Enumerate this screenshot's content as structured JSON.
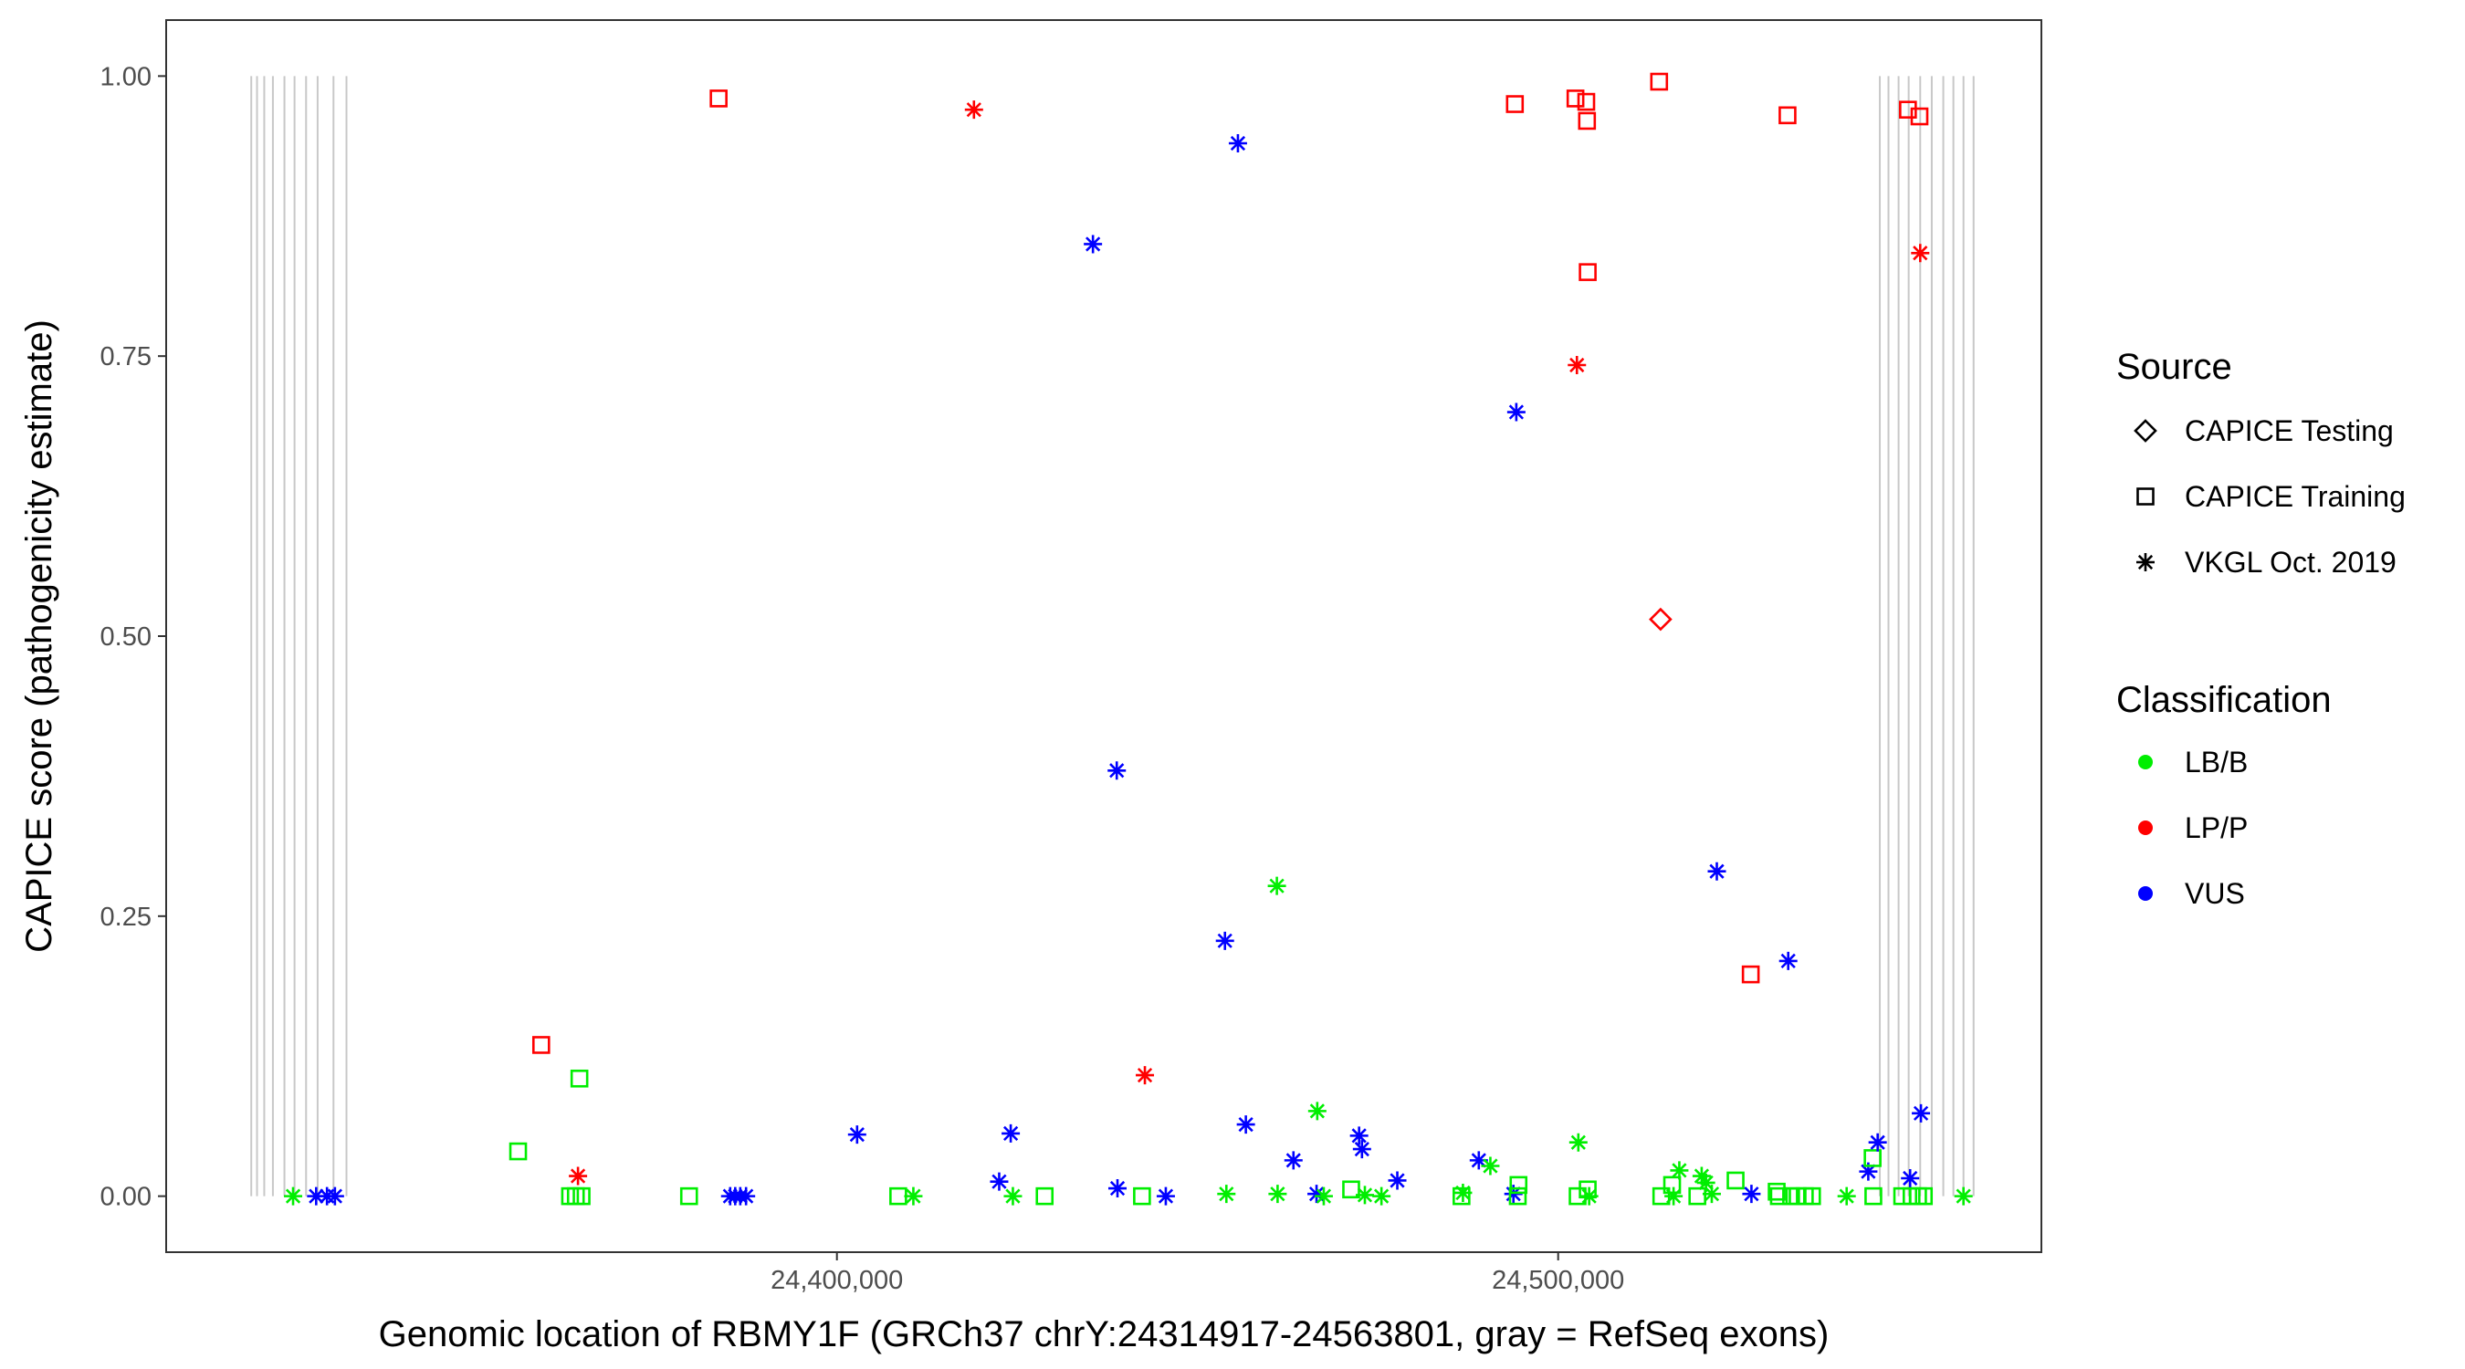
{
  "chart_data": {
    "type": "scatter",
    "title": "",
    "xlabel": "Genomic location of RBMY1F (GRCh37 chrY:24314917-24563801, gray = RefSeq exons)",
    "ylabel": "CAPICE score (pathogenicity estimate)",
    "xlim": [
      24307000,
      24567000
    ],
    "ylim": [
      -0.05,
      1.05
    ],
    "x_ticks": [
      24400000,
      24500000
    ],
    "x_tick_labels": [
      "24,400,000",
      "24,500,000"
    ],
    "y_ticks": [
      0,
      0.25,
      0.5,
      0.75,
      1.0
    ],
    "y_tick_labels": [
      "0.00",
      "0.25",
      "0.50",
      "0.75",
      "1.00"
    ],
    "grid": false,
    "exons": [
      24318800,
      24319600,
      24320600,
      24321800,
      24323400,
      24324800,
      24326400,
      24328000,
      24330200,
      24332000,
      24544600,
      24545800,
      24547200,
      24548600,
      24550200,
      24551800,
      24553400,
      24554800,
      24556200,
      24557600
    ],
    "legend_source": {
      "title": "Source",
      "items": [
        {
          "label": "CAPICE Testing",
          "shape": "diamond"
        },
        {
          "label": "CAPICE Training",
          "shape": "square"
        },
        {
          "label": "VKGL Oct. 2019",
          "shape": "asterisk"
        }
      ]
    },
    "legend_classification": {
      "title": "Classification",
      "items": [
        {
          "label": "LB/B",
          "color": "#00ee00"
        },
        {
          "label": "LP/P",
          "color": "#ff0000"
        },
        {
          "label": "VUS",
          "color": "#0000ff"
        }
      ]
    },
    "legend_placement": "right",
    "colors": {
      "LB/B": "#00ee00",
      "LP/P": "#ff0000",
      "VUS": "#0000ff"
    },
    "points": [
      {
        "x": 24324600,
        "y": 0.0,
        "shape": "asterisk",
        "cls": "LB/B"
      },
      {
        "x": 24327800,
        "y": 0.0,
        "shape": "asterisk",
        "cls": "VUS"
      },
      {
        "x": 24329300,
        "y": 0.0,
        "shape": "asterisk",
        "cls": "VUS"
      },
      {
        "x": 24330400,
        "y": 0.0,
        "shape": "asterisk",
        "cls": "VUS"
      },
      {
        "x": 24355800,
        "y": 0.04,
        "shape": "square",
        "cls": "LB/B"
      },
      {
        "x": 24359000,
        "y": 0.135,
        "shape": "square",
        "cls": "LP/P"
      },
      {
        "x": 24363000,
        "y": 0.0,
        "shape": "square",
        "cls": "LB/B"
      },
      {
        "x": 24363800,
        "y": 0.0,
        "shape": "square",
        "cls": "LB/B"
      },
      {
        "x": 24364100,
        "y": 0.018,
        "shape": "asterisk",
        "cls": "LP/P"
      },
      {
        "x": 24364300,
        "y": 0.105,
        "shape": "square",
        "cls": "LB/B"
      },
      {
        "x": 24364600,
        "y": 0.0,
        "shape": "square",
        "cls": "LB/B"
      },
      {
        "x": 24379500,
        "y": 0.0,
        "shape": "square",
        "cls": "LB/B"
      },
      {
        "x": 24383600,
        "y": 0.98,
        "shape": "square",
        "cls": "LP/P"
      },
      {
        "x": 24385200,
        "y": 0.0,
        "shape": "asterisk",
        "cls": "VUS"
      },
      {
        "x": 24385900,
        "y": 0.0,
        "shape": "asterisk",
        "cls": "VUS"
      },
      {
        "x": 24386600,
        "y": 0.0,
        "shape": "asterisk",
        "cls": "VUS"
      },
      {
        "x": 24387400,
        "y": 0.0,
        "shape": "asterisk",
        "cls": "VUS"
      },
      {
        "x": 24402800,
        "y": 0.055,
        "shape": "asterisk",
        "cls": "VUS"
      },
      {
        "x": 24408500,
        "y": 0.0,
        "shape": "square",
        "cls": "LB/B"
      },
      {
        "x": 24410600,
        "y": 0.0,
        "shape": "asterisk",
        "cls": "LB/B"
      },
      {
        "x": 24419000,
        "y": 0.97,
        "shape": "asterisk",
        "cls": "LP/P"
      },
      {
        "x": 24422500,
        "y": 0.013,
        "shape": "asterisk",
        "cls": "VUS"
      },
      {
        "x": 24424100,
        "y": 0.056,
        "shape": "asterisk",
        "cls": "VUS"
      },
      {
        "x": 24424400,
        "y": 0.0,
        "shape": "asterisk",
        "cls": "LB/B"
      },
      {
        "x": 24428800,
        "y": 0.0,
        "shape": "square",
        "cls": "LB/B"
      },
      {
        "x": 24435500,
        "y": 0.85,
        "shape": "asterisk",
        "cls": "VUS"
      },
      {
        "x": 24438800,
        "y": 0.38,
        "shape": "asterisk",
        "cls": "VUS"
      },
      {
        "x": 24438900,
        "y": 0.007,
        "shape": "asterisk",
        "cls": "VUS"
      },
      {
        "x": 24442300,
        "y": 0.0,
        "shape": "square",
        "cls": "LB/B"
      },
      {
        "x": 24442700,
        "y": 0.108,
        "shape": "asterisk",
        "cls": "LP/P"
      },
      {
        "x": 24445600,
        "y": 0.0,
        "shape": "asterisk",
        "cls": "VUS"
      },
      {
        "x": 24453800,
        "y": 0.228,
        "shape": "asterisk",
        "cls": "VUS"
      },
      {
        "x": 24454000,
        "y": 0.002,
        "shape": "asterisk",
        "cls": "LB/B"
      },
      {
        "x": 24455600,
        "y": 0.94,
        "shape": "asterisk",
        "cls": "VUS"
      },
      {
        "x": 24456700,
        "y": 0.064,
        "shape": "asterisk",
        "cls": "VUS"
      },
      {
        "x": 24461000,
        "y": 0.277,
        "shape": "asterisk",
        "cls": "LB/B"
      },
      {
        "x": 24461100,
        "y": 0.002,
        "shape": "asterisk",
        "cls": "LB/B"
      },
      {
        "x": 24463300,
        "y": 0.032,
        "shape": "asterisk",
        "cls": "VUS"
      },
      {
        "x": 24466600,
        "y": 0.076,
        "shape": "asterisk",
        "cls": "LB/B"
      },
      {
        "x": 24466500,
        "y": 0.002,
        "shape": "asterisk",
        "cls": "VUS"
      },
      {
        "x": 24467500,
        "y": 0.0,
        "shape": "asterisk",
        "cls": "LB/B"
      },
      {
        "x": 24471300,
        "y": 0.006,
        "shape": "square",
        "cls": "LB/B"
      },
      {
        "x": 24472400,
        "y": 0.054,
        "shape": "asterisk",
        "cls": "VUS"
      },
      {
        "x": 24472800,
        "y": 0.042,
        "shape": "asterisk",
        "cls": "VUS"
      },
      {
        "x": 24473200,
        "y": 0.001,
        "shape": "asterisk",
        "cls": "LB/B"
      },
      {
        "x": 24475500,
        "y": 0.0,
        "shape": "asterisk",
        "cls": "LB/B"
      },
      {
        "x": 24477700,
        "y": 0.014,
        "shape": "asterisk",
        "cls": "VUS"
      },
      {
        "x": 24486600,
        "y": 0.0,
        "shape": "square",
        "cls": "LB/B"
      },
      {
        "x": 24486800,
        "y": 0.003,
        "shape": "asterisk",
        "cls": "LB/B"
      },
      {
        "x": 24489000,
        "y": 0.032,
        "shape": "asterisk",
        "cls": "VUS"
      },
      {
        "x": 24490600,
        "y": 0.027,
        "shape": "asterisk",
        "cls": "LB/B"
      },
      {
        "x": 24493800,
        "y": 0.002,
        "shape": "asterisk",
        "cls": "VUS"
      },
      {
        "x": 24494000,
        "y": 0.975,
        "shape": "square",
        "cls": "LP/P"
      },
      {
        "x": 24494200,
        "y": 0.7,
        "shape": "asterisk",
        "cls": "VUS"
      },
      {
        "x": 24494400,
        "y": 0.0,
        "shape": "square",
        "cls": "LB/B"
      },
      {
        "x": 24494500,
        "y": 0.01,
        "shape": "square",
        "cls": "LB/B"
      },
      {
        "x": 24502400,
        "y": 0.98,
        "shape": "square",
        "cls": "LP/P"
      },
      {
        "x": 24502600,
        "y": 0.742,
        "shape": "asterisk",
        "cls": "LP/P"
      },
      {
        "x": 24502800,
        "y": 0.048,
        "shape": "asterisk",
        "cls": "LB/B"
      },
      {
        "x": 24502700,
        "y": 0.0,
        "shape": "square",
        "cls": "LB/B"
      },
      {
        "x": 24503900,
        "y": 0.977,
        "shape": "square",
        "cls": "LP/P"
      },
      {
        "x": 24504000,
        "y": 0.96,
        "shape": "square",
        "cls": "LP/P"
      },
      {
        "x": 24504100,
        "y": 0.825,
        "shape": "square",
        "cls": "LP/P"
      },
      {
        "x": 24504100,
        "y": 0.006,
        "shape": "square",
        "cls": "LB/B"
      },
      {
        "x": 24504300,
        "y": 0.0,
        "shape": "asterisk",
        "cls": "LB/B"
      },
      {
        "x": 24514000,
        "y": 0.995,
        "shape": "square",
        "cls": "LP/P"
      },
      {
        "x": 24514200,
        "y": 0.515,
        "shape": "diamond",
        "cls": "LP/P"
      },
      {
        "x": 24514300,
        "y": 0.0,
        "shape": "square",
        "cls": "LB/B"
      },
      {
        "x": 24515800,
        "y": 0.01,
        "shape": "square",
        "cls": "LB/B"
      },
      {
        "x": 24516000,
        "y": 0.0,
        "shape": "asterisk",
        "cls": "LB/B"
      },
      {
        "x": 24516800,
        "y": 0.023,
        "shape": "asterisk",
        "cls": "LB/B"
      },
      {
        "x": 24519300,
        "y": 0.0,
        "shape": "square",
        "cls": "LB/B"
      },
      {
        "x": 24519900,
        "y": 0.018,
        "shape": "asterisk",
        "cls": "LB/B"
      },
      {
        "x": 24520500,
        "y": 0.012,
        "shape": "asterisk",
        "cls": "LB/B"
      },
      {
        "x": 24521300,
        "y": 0.002,
        "shape": "asterisk",
        "cls": "LB/B"
      },
      {
        "x": 24522000,
        "y": 0.29,
        "shape": "asterisk",
        "cls": "VUS"
      },
      {
        "x": 24524600,
        "y": 0.014,
        "shape": "square",
        "cls": "LB/B"
      },
      {
        "x": 24526700,
        "y": 0.198,
        "shape": "square",
        "cls": "LP/P"
      },
      {
        "x": 24526800,
        "y": 0.002,
        "shape": "asterisk",
        "cls": "VUS"
      },
      {
        "x": 24530300,
        "y": 0.004,
        "shape": "square",
        "cls": "LB/B"
      },
      {
        "x": 24530600,
        "y": 0.0,
        "shape": "square",
        "cls": "LB/B"
      },
      {
        "x": 24531800,
        "y": 0.965,
        "shape": "square",
        "cls": "LP/P"
      },
      {
        "x": 24531900,
        "y": 0.21,
        "shape": "asterisk",
        "cls": "VUS"
      },
      {
        "x": 24532300,
        "y": 0.0,
        "shape": "square",
        "cls": "LB/B"
      },
      {
        "x": 24533200,
        "y": 0.0,
        "shape": "square",
        "cls": "LB/B"
      },
      {
        "x": 24534200,
        "y": 0.0,
        "shape": "square",
        "cls": "LB/B"
      },
      {
        "x": 24535200,
        "y": 0.0,
        "shape": "square",
        "cls": "LB/B"
      },
      {
        "x": 24540000,
        "y": 0.0,
        "shape": "asterisk",
        "cls": "LB/B"
      },
      {
        "x": 24543000,
        "y": 0.022,
        "shape": "asterisk",
        "cls": "VUS"
      },
      {
        "x": 24543600,
        "y": 0.034,
        "shape": "square",
        "cls": "LB/B"
      },
      {
        "x": 24543700,
        "y": 0.0,
        "shape": "square",
        "cls": "LB/B"
      },
      {
        "x": 24544300,
        "y": 0.048,
        "shape": "asterisk",
        "cls": "VUS"
      },
      {
        "x": 24547700,
        "y": 0.0,
        "shape": "square",
        "cls": "LB/B"
      },
      {
        "x": 24548500,
        "y": 0.97,
        "shape": "square",
        "cls": "LP/P"
      },
      {
        "x": 24548800,
        "y": 0.016,
        "shape": "asterisk",
        "cls": "VUS"
      },
      {
        "x": 24549000,
        "y": 0.0,
        "shape": "square",
        "cls": "LB/B"
      },
      {
        "x": 24549900,
        "y": 0.0,
        "shape": "square",
        "cls": "LB/B"
      },
      {
        "x": 24550100,
        "y": 0.964,
        "shape": "square",
        "cls": "LP/P"
      },
      {
        "x": 24550200,
        "y": 0.842,
        "shape": "asterisk",
        "cls": "LP/P"
      },
      {
        "x": 24550300,
        "y": 0.074,
        "shape": "asterisk",
        "cls": "VUS"
      },
      {
        "x": 24550700,
        "y": 0.0,
        "shape": "square",
        "cls": "LB/B"
      },
      {
        "x": 24556200,
        "y": 0.0,
        "shape": "asterisk",
        "cls": "LB/B"
      }
    ]
  }
}
